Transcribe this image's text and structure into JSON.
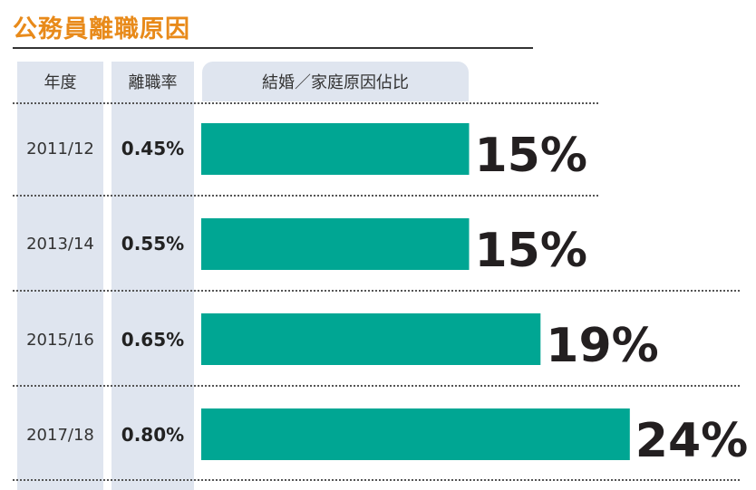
{
  "title": "公務員離職原因",
  "columns": {
    "year": "年度",
    "rate": "離職率",
    "share": "結婚／家庭原因佔比"
  },
  "chart_data": {
    "type": "bar",
    "orientation": "horizontal",
    "title": "公務員離職原因",
    "categories": [
      "2011/12",
      "2013/14",
      "2015/16",
      "2017/18"
    ],
    "resignation_rates": [
      "0.45%",
      "0.55%",
      "0.65%",
      "0.80%"
    ],
    "series": [
      {
        "name": "結婚／家庭原因佔比",
        "values": [
          15,
          15,
          19,
          24
        ],
        "labels": [
          "15%",
          "15%",
          "19%",
          "24%"
        ]
      }
    ],
    "bar_color": "#00a693",
    "grid": false
  }
}
